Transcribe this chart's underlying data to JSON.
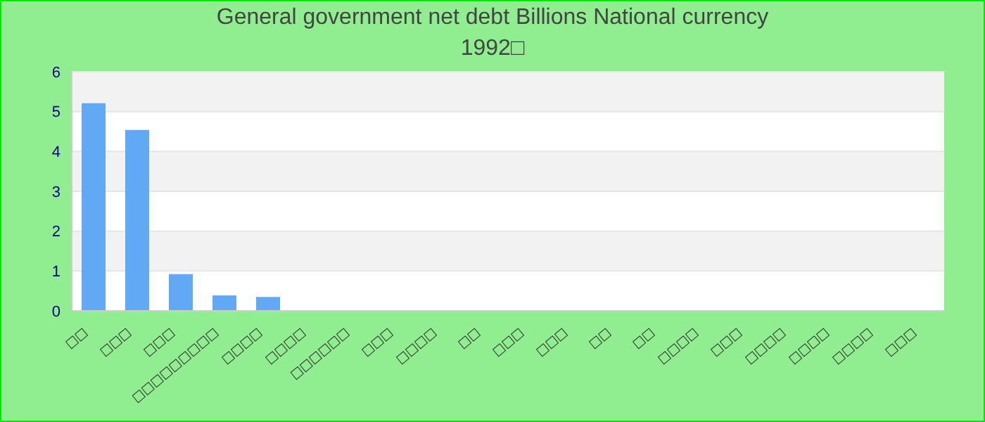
{
  "chart_data": {
    "type": "bar",
    "title": "General government net debt Billions National currency",
    "subtitle": "1992□",
    "categories": [
      "□□",
      "□□□",
      "□□□",
      "□□□□□□□□□",
      "□□□□",
      "□□□□",
      "□□□□□□",
      "□□□",
      "□□□□",
      "□□",
      "□□□",
      "□□□",
      "□□",
      "□□",
      "□□□□",
      "□□□",
      "□□□□",
      "□□□□",
      "□□□□",
      "□□□"
    ],
    "values": [
      5.21,
      4.54,
      0.92,
      0.39,
      0.35,
      null,
      null,
      null,
      null,
      null,
      null,
      null,
      null,
      null,
      null,
      null,
      null,
      null,
      null,
      null
    ],
    "color": "#62a9f5",
    "ylim": [
      0,
      6
    ],
    "yticks": [
      0,
      1,
      2,
      3,
      4,
      5,
      6
    ],
    "grid": "y"
  }
}
